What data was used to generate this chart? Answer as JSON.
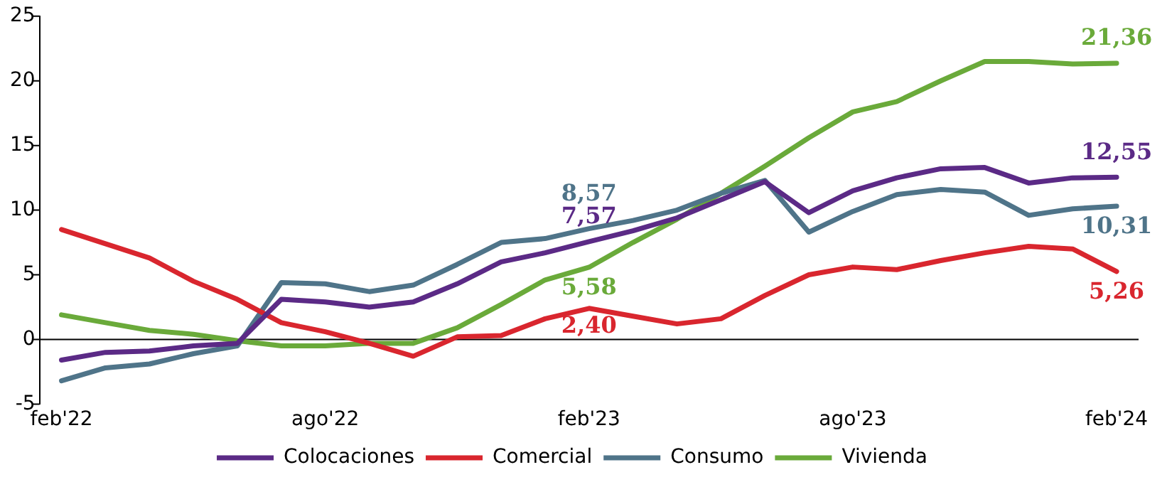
{
  "chart_data": {
    "type": "line",
    "categories": [
      "feb'22",
      null,
      null,
      null,
      null,
      null,
      "ago'22",
      null,
      null,
      null,
      null,
      null,
      "feb'23",
      null,
      null,
      null,
      null,
      null,
      "ago'23",
      null,
      null,
      null,
      null,
      null,
      "feb'24"
    ],
    "series": [
      {
        "name": "Colocaciones",
        "color": "#5b2a86",
        "values": [
          -1.6,
          -1.0,
          -0.9,
          -0.5,
          -0.3,
          3.1,
          2.9,
          2.5,
          2.9,
          4.3,
          6.0,
          6.7,
          7.57,
          8.4,
          9.4,
          10.8,
          12.2,
          9.8,
          11.5,
          12.5,
          13.2,
          13.3,
          12.1,
          12.5,
          12.55
        ],
        "value_labels": [
          null,
          null,
          null,
          null,
          null,
          null,
          null,
          null,
          null,
          null,
          null,
          null,
          "7,57",
          null,
          null,
          null,
          null,
          null,
          null,
          null,
          null,
          null,
          null,
          null,
          "12,55"
        ]
      },
      {
        "name": "Comercial",
        "color": "#d9262e",
        "values": [
          8.5,
          7.4,
          6.3,
          4.5,
          3.1,
          1.3,
          0.6,
          -0.3,
          -1.3,
          0.2,
          0.3,
          1.6,
          2.4,
          1.8,
          1.2,
          1.6,
          3.4,
          5.0,
          5.6,
          5.4,
          6.1,
          6.7,
          7.2,
          7.0,
          5.26
        ],
        "value_labels": [
          null,
          null,
          null,
          null,
          null,
          null,
          null,
          null,
          null,
          null,
          null,
          null,
          "2,40",
          null,
          null,
          null,
          null,
          null,
          null,
          null,
          null,
          null,
          null,
          null,
          "5,26"
        ]
      },
      {
        "name": "Consumo",
        "color": "#4f7489",
        "values": [
          -3.2,
          -2.2,
          -1.9,
          -1.1,
          -0.5,
          4.4,
          4.3,
          3.7,
          4.2,
          5.8,
          7.5,
          7.8,
          8.57,
          9.2,
          10.0,
          11.3,
          12.3,
          8.3,
          9.9,
          11.2,
          11.6,
          11.4,
          9.6,
          10.1,
          10.31
        ],
        "value_labels": [
          null,
          null,
          null,
          null,
          null,
          null,
          null,
          null,
          null,
          null,
          null,
          null,
          "8,57",
          null,
          null,
          null,
          null,
          null,
          null,
          null,
          null,
          null,
          null,
          null,
          "10,31"
        ]
      },
      {
        "name": "Vivienda",
        "color": "#6aaa3a",
        "values": [
          1.9,
          1.3,
          0.7,
          0.4,
          -0.1,
          -0.5,
          -0.5,
          -0.3,
          -0.3,
          0.9,
          2.7,
          4.6,
          5.58,
          7.5,
          9.3,
          11.3,
          13.4,
          15.6,
          17.6,
          18.4,
          20.0,
          21.5,
          21.5,
          21.3,
          21.36
        ],
        "value_labels": [
          null,
          null,
          null,
          null,
          null,
          null,
          null,
          null,
          null,
          null,
          null,
          null,
          "5,58",
          null,
          null,
          null,
          null,
          null,
          null,
          null,
          null,
          null,
          null,
          null,
          "21,36"
        ]
      }
    ],
    "ref_lines": [
      {
        "axis": "y",
        "value": 0,
        "color": "#000000"
      }
    ],
    "ylim": [
      -5,
      25
    ],
    "yticks": [
      -5,
      0,
      5,
      10,
      15,
      20,
      25
    ],
    "grid": false,
    "legend": "bottom",
    "marker": "none",
    "line_style": "solid"
  }
}
